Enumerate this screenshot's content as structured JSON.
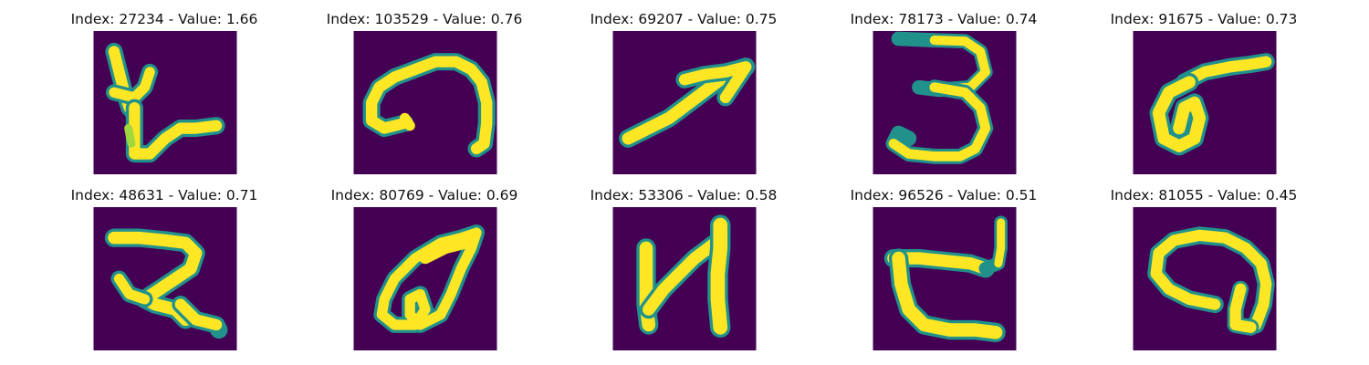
{
  "colors": {
    "background": "#440154",
    "mid": "#21918c",
    "teal": "#2a9d8f",
    "green": "#5ec962",
    "stroke": "#fde725"
  },
  "panels": [
    {
      "index": 27234,
      "value": 1.66,
      "title": "Index: 27234 - Value: 1.66",
      "glyph": "glyph-1"
    },
    {
      "index": 103529,
      "value": 0.76,
      "title": "Index: 103529 - Value: 0.76",
      "glyph": "glyph-2"
    },
    {
      "index": 69207,
      "value": 0.75,
      "title": "Index: 69207 - Value: 0.75",
      "glyph": "glyph-3"
    },
    {
      "index": 78173,
      "value": 0.74,
      "title": "Index: 78173 - Value: 0.74",
      "glyph": "glyph-4"
    },
    {
      "index": 91675,
      "value": 0.73,
      "title": "Index: 91675 - Value: 0.73",
      "glyph": "glyph-5"
    },
    {
      "index": 48631,
      "value": 0.71,
      "title": "Index: 48631 - Value: 0.71",
      "glyph": "glyph-6"
    },
    {
      "index": 80769,
      "value": 0.69,
      "title": "Index: 80769 - Value: 0.69",
      "glyph": "glyph-7"
    },
    {
      "index": 53306,
      "value": 0.58,
      "title": "Index: 53306 - Value: 0.58",
      "glyph": "glyph-8"
    },
    {
      "index": 96526,
      "value": 0.51,
      "title": "Index: 96526 - Value: 0.51",
      "glyph": "glyph-9"
    },
    {
      "index": 81055,
      "value": 0.45,
      "title": "Index: 81055 - Value: 0.45",
      "glyph": "glyph-10"
    }
  ]
}
